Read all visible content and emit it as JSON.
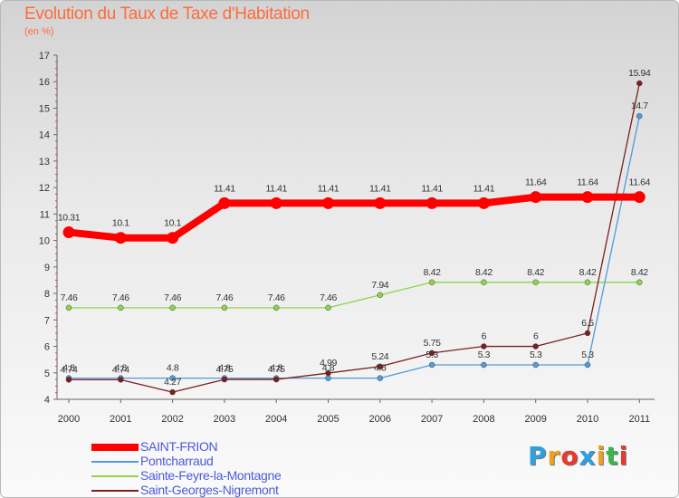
{
  "chart_data": {
    "type": "line",
    "title": "Evolution du Taux de Taxe d'Habitation",
    "subtitle": "(en %)",
    "xlabel": "",
    "ylabel": "",
    "ylim": [
      4,
      17
    ],
    "yticks": [
      "4",
      "5",
      "6",
      "7",
      "8",
      "9",
      "10",
      "11",
      "12",
      "13",
      "14",
      "15",
      "16",
      "17"
    ],
    "categories": [
      "2000",
      "2001",
      "2002",
      "2003",
      "2004",
      "2005",
      "2006",
      "2007",
      "2008",
      "2009",
      "2010",
      "2011"
    ],
    "legend_position": "bottom-left",
    "grid": false,
    "series": [
      {
        "name": "SAINT-FRION",
        "color": "#ff0000",
        "values": [
          10.31,
          10.1,
          10.1,
          11.41,
          11.41,
          11.41,
          11.41,
          11.41,
          11.41,
          11.64,
          11.64,
          11.64
        ],
        "labels": [
          "10.31",
          "10.1",
          "10.1",
          "11.41",
          "11.41",
          "11.41",
          "11.41",
          "11.41",
          "11.41",
          "11.64",
          "11.64",
          "11.64"
        ]
      },
      {
        "name": "Pontcharraud",
        "color": "#4f9bdc",
        "values": [
          4.8,
          4.8,
          4.8,
          4.8,
          4.8,
          4.8,
          4.8,
          5.3,
          5.3,
          5.3,
          5.3,
          14.7
        ],
        "labels": [
          "4.8",
          "4.8",
          "4.8",
          "4.8",
          "4.8",
          "4.8",
          "4.8",
          "5.3",
          "5.3",
          "5.3",
          "5.3",
          "14.7"
        ]
      },
      {
        "name": "Sainte-Feyre-la-Montagne",
        "color": "#8fd44a",
        "values": [
          7.46,
          7.46,
          7.46,
          7.46,
          7.46,
          7.46,
          7.94,
          8.42,
          8.42,
          8.42,
          8.42,
          8.42
        ],
        "labels": [
          "7.46",
          "7.46",
          "7.46",
          "7.46",
          "7.46",
          "7.46",
          "7.94",
          "8.42",
          "8.42",
          "8.42",
          "8.42",
          "8.42"
        ]
      },
      {
        "name": "Saint-Georges-Nigremont",
        "color": "#7a1f1f",
        "values": [
          4.74,
          4.74,
          4.27,
          4.75,
          4.75,
          4.99,
          5.24,
          5.75,
          6,
          6,
          6.5,
          15.94
        ],
        "labels": [
          "4.74",
          "4.74",
          "4.27",
          "4.75",
          "4.75",
          "4.99",
          "5.24",
          "5.75",
          "6",
          "6",
          "6.5",
          "15.94"
        ]
      }
    ]
  },
  "logo": {
    "letters": [
      "P",
      "r",
      "o",
      "x",
      "i",
      "t",
      "i"
    ],
    "colors": [
      "#2f9fe0",
      "#f0a020",
      "#e83a2a",
      "#2f9fe0",
      "#f0a020",
      "#3bb54a",
      "#e83a2a"
    ]
  }
}
